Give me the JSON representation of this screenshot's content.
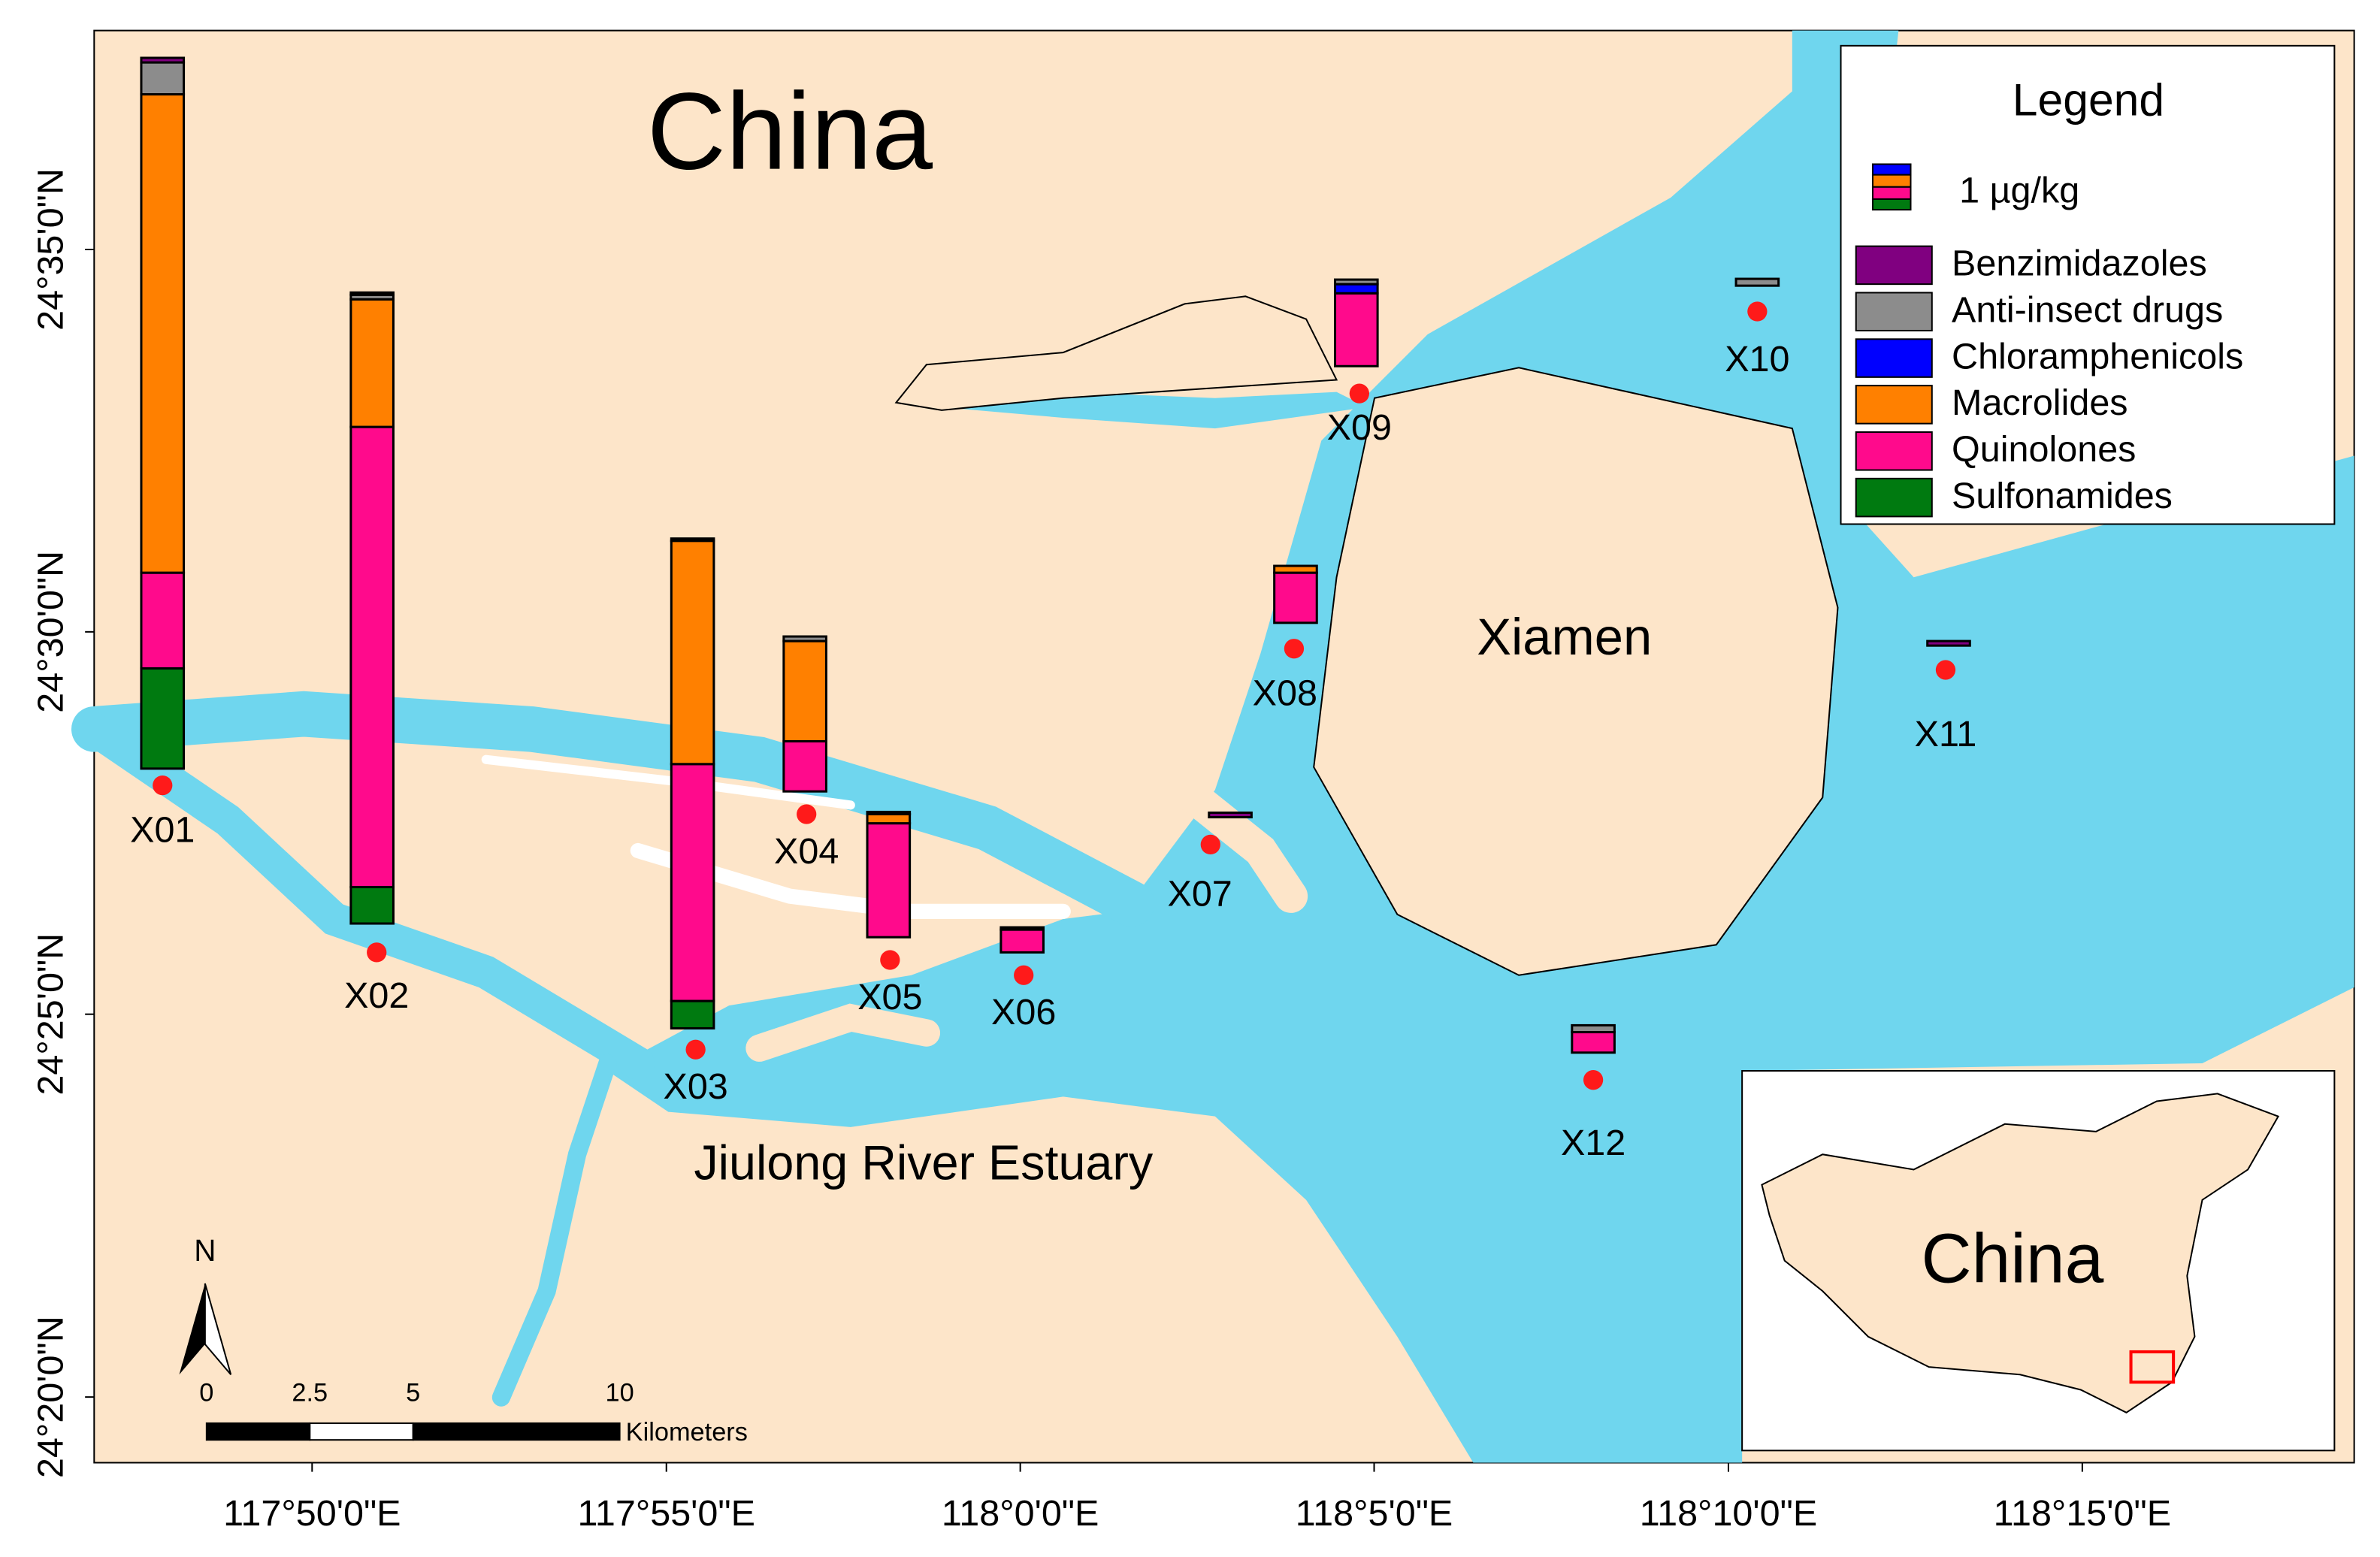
{
  "chart_data": {
    "type": "stacked-bar-map",
    "title": "China",
    "place_labels": [
      "Xiamen",
      "Jiulong River Estuary"
    ],
    "inset_label": "China",
    "legend": {
      "title": "Legend",
      "scale_label": "1 µg/kg"
    },
    "classes": [
      {
        "name": "Benzimidazoles",
        "color": "#800080"
      },
      {
        "name": "Anti-insect drugs",
        "color": "#8c8c8c"
      },
      {
        "name": "Chloramphenicols",
        "color": "#0000ff"
      },
      {
        "name": "Macrolides",
        "color": "#ff8000"
      },
      {
        "name": "Quinolones",
        "color": "#ff0a8c"
      },
      {
        "name": "Sulfonamides",
        "color": "#007a10"
      }
    ],
    "stations": [
      {
        "name": "X01",
        "values": [
          0.1,
          0.7,
          0,
          10.5,
          2.1,
          2.2
        ]
      },
      {
        "name": "X02",
        "values": [
          0.05,
          0.1,
          0,
          2.8,
          10.1,
          0.8
        ]
      },
      {
        "name": "X03",
        "values": [
          0.05,
          0,
          0,
          4.9,
          5.2,
          0.6
        ]
      },
      {
        "name": "X04",
        "values": [
          0,
          0.1,
          0,
          2.2,
          1.1,
          0
        ]
      },
      {
        "name": "X05",
        "values": [
          0,
          0.05,
          0,
          0.2,
          2.5,
          0
        ]
      },
      {
        "name": "X06",
        "values": [
          0.05,
          0,
          0,
          0,
          0.5,
          0
        ]
      },
      {
        "name": "X07",
        "values": [
          0.1,
          0,
          0,
          0,
          0,
          0
        ]
      },
      {
        "name": "X08",
        "values": [
          0,
          0,
          0,
          0.15,
          1.1,
          0
        ]
      },
      {
        "name": "X09",
        "values": [
          0,
          0.1,
          0.2,
          0,
          1.6,
          0
        ]
      },
      {
        "name": "X10",
        "values": [
          0,
          0.15,
          0,
          0,
          0,
          0
        ]
      },
      {
        "name": "X11",
        "values": [
          0.1,
          0,
          0,
          0,
          0,
          0
        ]
      },
      {
        "name": "X12",
        "values": [
          0,
          0.15,
          0,
          0,
          0.45,
          0
        ]
      }
    ],
    "xlim": [
      117.782,
      118.314
    ],
    "xticks": [
      {
        "value": 117.8333,
        "label": "117°50'0\"E"
      },
      {
        "value": 117.9167,
        "label": "117°55'0\"E"
      },
      {
        "value": 118.0,
        "label": "118°0'0\"E"
      },
      {
        "value": 118.0833,
        "label": "118°5'0\"E"
      },
      {
        "value": 118.1667,
        "label": "118°10'0\"E"
      },
      {
        "value": 118.25,
        "label": "118°15'0\"E"
      }
    ],
    "ylim": [
      24.319,
      24.631
    ],
    "yticks": [
      {
        "value": 24.3333,
        "label": "24°20'0\"N"
      },
      {
        "value": 24.4167,
        "label": "24°25'0\"N"
      },
      {
        "value": 24.5,
        "label": "24°30'0\"N"
      },
      {
        "value": 24.5833,
        "label": "24°35'0\"N"
      }
    ],
    "north_label": "N",
    "scale_bar": {
      "ticks": [
        0,
        2.5,
        5,
        10
      ],
      "unit": "Kilometers"
    }
  }
}
